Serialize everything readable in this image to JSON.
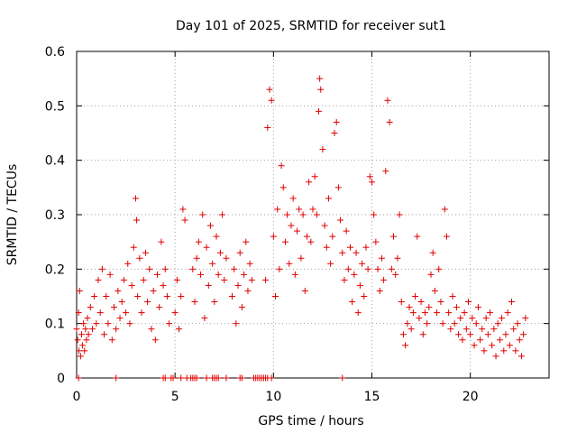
{
  "chart_data": {
    "type": "scatter",
    "title": "Day 101 of 2025, SRMTID for receiver sut1",
    "xlabel": "GPS time / hours",
    "ylabel": "SRMTID / TECUs",
    "xlim": [
      0,
      24
    ],
    "ylim": [
      0,
      0.6
    ],
    "xticks": [
      0,
      5,
      10,
      15,
      20
    ],
    "xtick_labels": [
      "0",
      "5",
      "10",
      "15",
      "20"
    ],
    "yticks": [
      0,
      0.1,
      0.2,
      0.3,
      0.4,
      0.5,
      0.6
    ],
    "ytick_labels": [
      "0",
      "0.1",
      "0.2",
      "0.3",
      "0.4",
      "0.5",
      "0.6"
    ],
    "grid": true,
    "marker": "+",
    "color": "#e00000",
    "series": [
      {
        "name": "SRMTID",
        "points": [
          [
            0.0,
            0.09
          ],
          [
            0.05,
            0.07
          ],
          [
            0.1,
            0.12
          ],
          [
            0.12,
            0.05
          ],
          [
            0.15,
            0.16
          ],
          [
            0.2,
            0.04
          ],
          [
            0.25,
            0.08
          ],
          [
            0.3,
            0.06
          ],
          [
            0.35,
            0.1
          ],
          [
            0.4,
            0.05
          ],
          [
            0.45,
            0.09
          ],
          [
            0.5,
            0.07
          ],
          [
            0.55,
            0.11
          ],
          [
            0.6,
            0.08
          ],
          [
            0.7,
            0.13
          ],
          [
            0.8,
            0.09
          ],
          [
            0.9,
            0.15
          ],
          [
            1.0,
            0.1
          ],
          [
            1.1,
            0.18
          ],
          [
            1.2,
            0.12
          ],
          [
            1.3,
            0.2
          ],
          [
            1.4,
            0.08
          ],
          [
            1.5,
            0.15
          ],
          [
            1.6,
            0.1
          ],
          [
            1.7,
            0.19
          ],
          [
            1.8,
            0.07
          ],
          [
            1.9,
            0.13
          ],
          [
            2.0,
            0.09
          ],
          [
            2.1,
            0.16
          ],
          [
            2.2,
            0.11
          ],
          [
            2.3,
            0.14
          ],
          [
            2.4,
            0.18
          ],
          [
            2.5,
            0.12
          ],
          [
            2.6,
            0.21
          ],
          [
            2.7,
            0.1
          ],
          [
            2.8,
            0.17
          ],
          [
            2.9,
            0.24
          ],
          [
            3.0,
            0.33
          ],
          [
            3.05,
            0.29
          ],
          [
            3.1,
            0.15
          ],
          [
            3.2,
            0.22
          ],
          [
            3.3,
            0.12
          ],
          [
            3.4,
            0.18
          ],
          [
            3.5,
            0.23
          ],
          [
            3.6,
            0.14
          ],
          [
            3.7,
            0.2
          ],
          [
            3.8,
            0.09
          ],
          [
            3.9,
            0.16
          ],
          [
            4.0,
            0.07
          ],
          [
            4.1,
            0.19
          ],
          [
            4.2,
            0.13
          ],
          [
            4.3,
            0.25
          ],
          [
            4.4,
            0.17
          ],
          [
            4.5,
            0.2
          ],
          [
            4.6,
            0.15
          ],
          [
            4.7,
            0.1
          ],
          [
            5.0,
            0.12
          ],
          [
            5.1,
            0.18
          ],
          [
            5.2,
            0.09
          ],
          [
            5.3,
            0.15
          ],
          [
            5.4,
            0.31
          ],
          [
            5.5,
            0.29
          ],
          [
            5.9,
            0.2
          ],
          [
            6.0,
            0.14
          ],
          [
            6.1,
            0.22
          ],
          [
            6.2,
            0.25
          ],
          [
            6.3,
            0.19
          ],
          [
            6.4,
            0.3
          ],
          [
            6.5,
            0.11
          ],
          [
            6.6,
            0.24
          ],
          [
            6.7,
            0.17
          ],
          [
            6.8,
            0.28
          ],
          [
            6.9,
            0.21
          ],
          [
            7.0,
            0.14
          ],
          [
            7.1,
            0.26
          ],
          [
            7.2,
            0.19
          ],
          [
            7.3,
            0.23
          ],
          [
            7.4,
            0.3
          ],
          [
            7.5,
            0.18
          ],
          [
            7.6,
            0.22
          ],
          [
            7.9,
            0.15
          ],
          [
            8.0,
            0.2
          ],
          [
            8.1,
            0.1
          ],
          [
            8.2,
            0.17
          ],
          [
            8.3,
            0.23
          ],
          [
            8.4,
            0.13
          ],
          [
            8.5,
            0.19
          ],
          [
            8.6,
            0.25
          ],
          [
            8.7,
            0.16
          ],
          [
            8.8,
            0.21
          ],
          [
            8.9,
            0.18
          ],
          [
            9.6,
            0.18
          ],
          [
            9.7,
            0.46
          ],
          [
            9.8,
            0.53
          ],
          [
            9.9,
            0.51
          ],
          [
            10.0,
            0.26
          ],
          [
            10.1,
            0.15
          ],
          [
            10.2,
            0.31
          ],
          [
            10.3,
            0.2
          ],
          [
            10.4,
            0.39
          ],
          [
            10.5,
            0.35
          ],
          [
            10.6,
            0.25
          ],
          [
            10.7,
            0.3
          ],
          [
            10.8,
            0.21
          ],
          [
            10.9,
            0.28
          ],
          [
            11.0,
            0.33
          ],
          [
            11.1,
            0.19
          ],
          [
            11.2,
            0.27
          ],
          [
            11.3,
            0.31
          ],
          [
            11.4,
            0.22
          ],
          [
            11.5,
            0.3
          ],
          [
            11.6,
            0.16
          ],
          [
            11.7,
            0.26
          ],
          [
            11.8,
            0.36
          ],
          [
            11.9,
            0.25
          ],
          [
            12.0,
            0.31
          ],
          [
            12.1,
            0.37
          ],
          [
            12.2,
            0.3
          ],
          [
            12.3,
            0.49
          ],
          [
            12.35,
            0.55
          ],
          [
            12.4,
            0.53
          ],
          [
            12.5,
            0.42
          ],
          [
            12.6,
            0.28
          ],
          [
            12.7,
            0.24
          ],
          [
            12.8,
            0.33
          ],
          [
            12.9,
            0.21
          ],
          [
            13.0,
            0.26
          ],
          [
            13.1,
            0.45
          ],
          [
            13.2,
            0.47
          ],
          [
            13.3,
            0.35
          ],
          [
            13.4,
            0.29
          ],
          [
            13.5,
            0.23
          ],
          [
            13.6,
            0.18
          ],
          [
            13.7,
            0.27
          ],
          [
            13.8,
            0.2
          ],
          [
            13.9,
            0.24
          ],
          [
            14.0,
            0.14
          ],
          [
            14.1,
            0.19
          ],
          [
            14.2,
            0.23
          ],
          [
            14.3,
            0.12
          ],
          [
            14.4,
            0.17
          ],
          [
            14.5,
            0.21
          ],
          [
            14.6,
            0.15
          ],
          [
            14.7,
            0.24
          ],
          [
            14.8,
            0.2
          ],
          [
            14.9,
            0.37
          ],
          [
            15.0,
            0.36
          ],
          [
            15.1,
            0.3
          ],
          [
            15.2,
            0.25
          ],
          [
            15.3,
            0.2
          ],
          [
            15.4,
            0.16
          ],
          [
            15.5,
            0.22
          ],
          [
            15.6,
            0.18
          ],
          [
            15.7,
            0.38
          ],
          [
            15.8,
            0.51
          ],
          [
            15.9,
            0.47
          ],
          [
            16.0,
            0.2
          ],
          [
            16.1,
            0.26
          ],
          [
            16.2,
            0.19
          ],
          [
            16.3,
            0.22
          ],
          [
            16.4,
            0.3
          ],
          [
            16.5,
            0.14
          ],
          [
            16.6,
            0.08
          ],
          [
            16.7,
            0.06
          ],
          [
            16.8,
            0.1
          ],
          [
            16.9,
            0.13
          ],
          [
            17.0,
            0.09
          ],
          [
            17.1,
            0.12
          ],
          [
            17.2,
            0.15
          ],
          [
            17.3,
            0.26
          ],
          [
            17.4,
            0.11
          ],
          [
            17.5,
            0.14
          ],
          [
            17.6,
            0.08
          ],
          [
            17.7,
            0.12
          ],
          [
            17.8,
            0.1
          ],
          [
            17.9,
            0.13
          ],
          [
            18.0,
            0.19
          ],
          [
            18.1,
            0.23
          ],
          [
            18.2,
            0.16
          ],
          [
            18.3,
            0.12
          ],
          [
            18.4,
            0.2
          ],
          [
            18.5,
            0.14
          ],
          [
            18.6,
            0.1
          ],
          [
            18.7,
            0.31
          ],
          [
            18.8,
            0.26
          ],
          [
            18.9,
            0.12
          ],
          [
            19.0,
            0.09
          ],
          [
            19.1,
            0.15
          ],
          [
            19.2,
            0.1
          ],
          [
            19.3,
            0.13
          ],
          [
            19.4,
            0.08
          ],
          [
            19.5,
            0.11
          ],
          [
            19.6,
            0.07
          ],
          [
            19.7,
            0.12
          ],
          [
            19.8,
            0.09
          ],
          [
            19.9,
            0.14
          ],
          [
            20.0,
            0.08
          ],
          [
            20.1,
            0.11
          ],
          [
            20.2,
            0.06
          ],
          [
            20.3,
            0.1
          ],
          [
            20.4,
            0.13
          ],
          [
            20.5,
            0.07
          ],
          [
            20.6,
            0.09
          ],
          [
            20.7,
            0.05
          ],
          [
            20.8,
            0.11
          ],
          [
            20.9,
            0.08
          ],
          [
            21.0,
            0.12
          ],
          [
            21.1,
            0.06
          ],
          [
            21.2,
            0.09
          ],
          [
            21.3,
            0.04
          ],
          [
            21.4,
            0.1
          ],
          [
            21.5,
            0.07
          ],
          [
            21.6,
            0.11
          ],
          [
            21.7,
            0.05
          ],
          [
            21.8,
            0.08
          ],
          [
            21.9,
            0.12
          ],
          [
            22.0,
            0.06
          ],
          [
            22.1,
            0.14
          ],
          [
            22.2,
            0.09
          ],
          [
            22.3,
            0.05
          ],
          [
            22.4,
            0.1
          ],
          [
            22.5,
            0.07
          ],
          [
            22.6,
            0.04
          ],
          [
            22.7,
            0.08
          ],
          [
            22.8,
            0.11
          ],
          [
            0.1,
            0.0
          ],
          [
            2.0,
            0.0
          ],
          [
            4.4,
            0.0
          ],
          [
            4.5,
            0.0
          ],
          [
            4.8,
            0.0
          ],
          [
            4.9,
            0.0
          ],
          [
            5.3,
            0.0
          ],
          [
            5.6,
            0.0
          ],
          [
            5.8,
            0.0
          ],
          [
            5.9,
            0.0
          ],
          [
            6.0,
            0.0
          ],
          [
            6.1,
            0.0
          ],
          [
            6.6,
            0.0
          ],
          [
            6.9,
            0.0
          ],
          [
            7.0,
            0.0
          ],
          [
            7.1,
            0.0
          ],
          [
            7.2,
            0.0
          ],
          [
            7.6,
            0.0
          ],
          [
            8.3,
            0.0
          ],
          [
            8.4,
            0.0
          ],
          [
            9.0,
            0.0
          ],
          [
            9.1,
            0.0
          ],
          [
            9.2,
            0.0
          ],
          [
            9.3,
            0.0
          ],
          [
            9.4,
            0.0
          ],
          [
            9.5,
            0.0
          ],
          [
            9.6,
            0.0
          ],
          [
            9.7,
            0.0
          ],
          [
            9.9,
            0.0
          ],
          [
            13.5,
            0.0
          ]
        ]
      }
    ]
  }
}
